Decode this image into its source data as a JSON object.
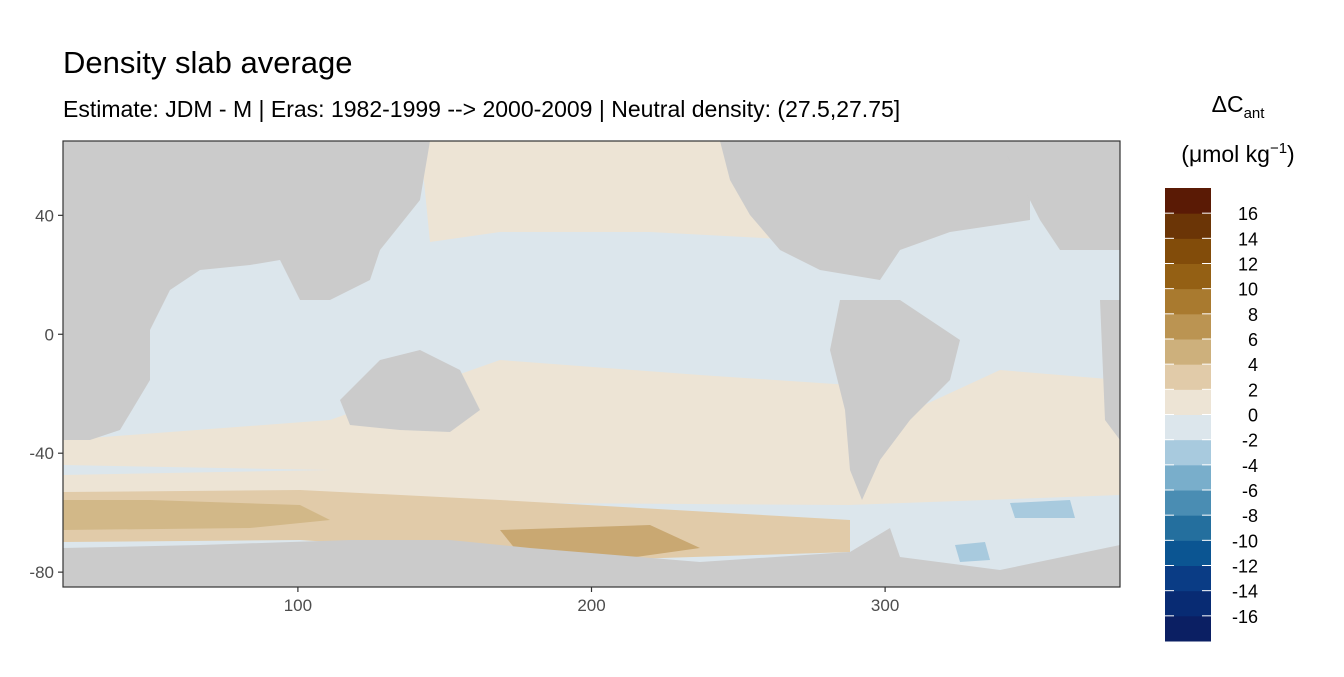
{
  "chart_data": {
    "type": "map",
    "title": "Density slab average",
    "subtitle": "Estimate: JDM - M | Eras: 1982-1999 --> 2000-2009 | Neutral density: (27.5,27.75]",
    "xlim": [
      20,
      380
    ],
    "ylim": [
      -85,
      65
    ],
    "xticks": [
      100,
      200,
      300
    ],
    "yticks": [
      -80,
      -40,
      0,
      40
    ],
    "land_color": "#cbcbcb",
    "legend": {
      "title": "ΔC",
      "title_subscript": "ant",
      "unit": "(μmol kg",
      "unit_superscript": "−1",
      "unit_close": ")",
      "limits": [
        -18,
        18
      ],
      "ticks": [
        -16,
        -14,
        -12,
        -10,
        -8,
        -6,
        -4,
        -2,
        0,
        2,
        4,
        6,
        8,
        10,
        12,
        14,
        16
      ],
      "colors": [
        "#0b1f63",
        "#082b73",
        "#0a3c85",
        "#0b5592",
        "#246f9e",
        "#4a8db3",
        "#79aecb",
        "#a8cade",
        "#dce6ec",
        "#ede4d5",
        "#e1cba9",
        "#cdb07c",
        "#bb9452",
        "#a97a2f",
        "#946014",
        "#824c0a",
        "#6b3506",
        "#5a1a05"
      ]
    }
  }
}
